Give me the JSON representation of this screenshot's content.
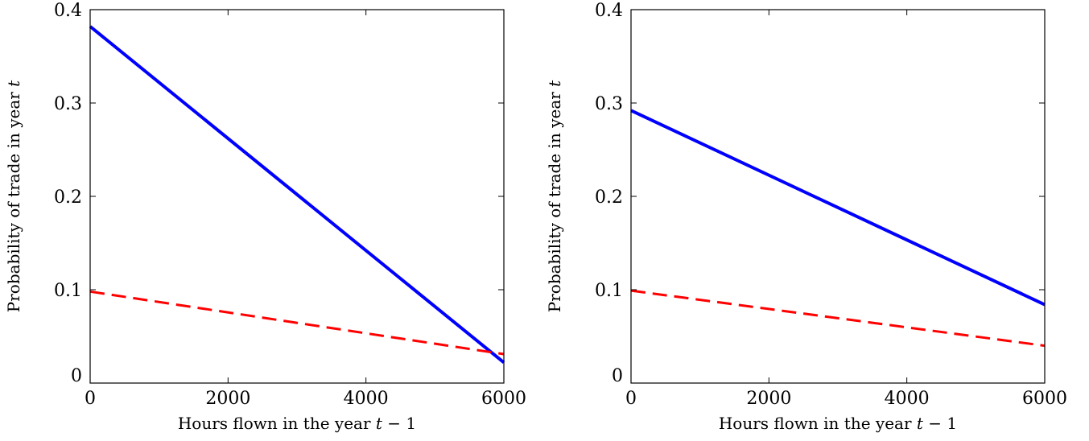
{
  "chart_data": [
    {
      "type": "line",
      "xlabel": "Hours flown in the year t − 1",
      "ylabel": "Probability of trade in year t",
      "xlim": [
        0,
        6000
      ],
      "ylim": [
        0,
        0.4
      ],
      "xticks": [
        0,
        2000,
        4000,
        6000
      ],
      "yticks": [
        0,
        0.1,
        0.2,
        0.3,
        0.4
      ],
      "grid": false,
      "series": [
        {
          "color": "#0000ff",
          "style": "solid",
          "x": [
            0,
            6000
          ],
          "y": [
            0.382,
            0.022
          ]
        },
        {
          "color": "#ff0000",
          "style": "dashed",
          "x": [
            0,
            6000
          ],
          "y": [
            0.098,
            0.031
          ]
        }
      ]
    },
    {
      "type": "line",
      "xlabel": "Hours flown in the year t − 1",
      "ylabel": "Probability of trade in year t",
      "xlim": [
        0,
        6000
      ],
      "ylim": [
        0,
        0.4
      ],
      "xticks": [
        0,
        2000,
        4000,
        6000
      ],
      "yticks": [
        0,
        0.1,
        0.2,
        0.3,
        0.4
      ],
      "grid": false,
      "series": [
        {
          "color": "#0000ff",
          "style": "solid",
          "x": [
            0,
            6000
          ],
          "y": [
            0.292,
            0.084
          ]
        },
        {
          "color": "#ff0000",
          "style": "dashed",
          "x": [
            0,
            6000
          ],
          "y": [
            0.099,
            0.04
          ]
        }
      ]
    }
  ]
}
